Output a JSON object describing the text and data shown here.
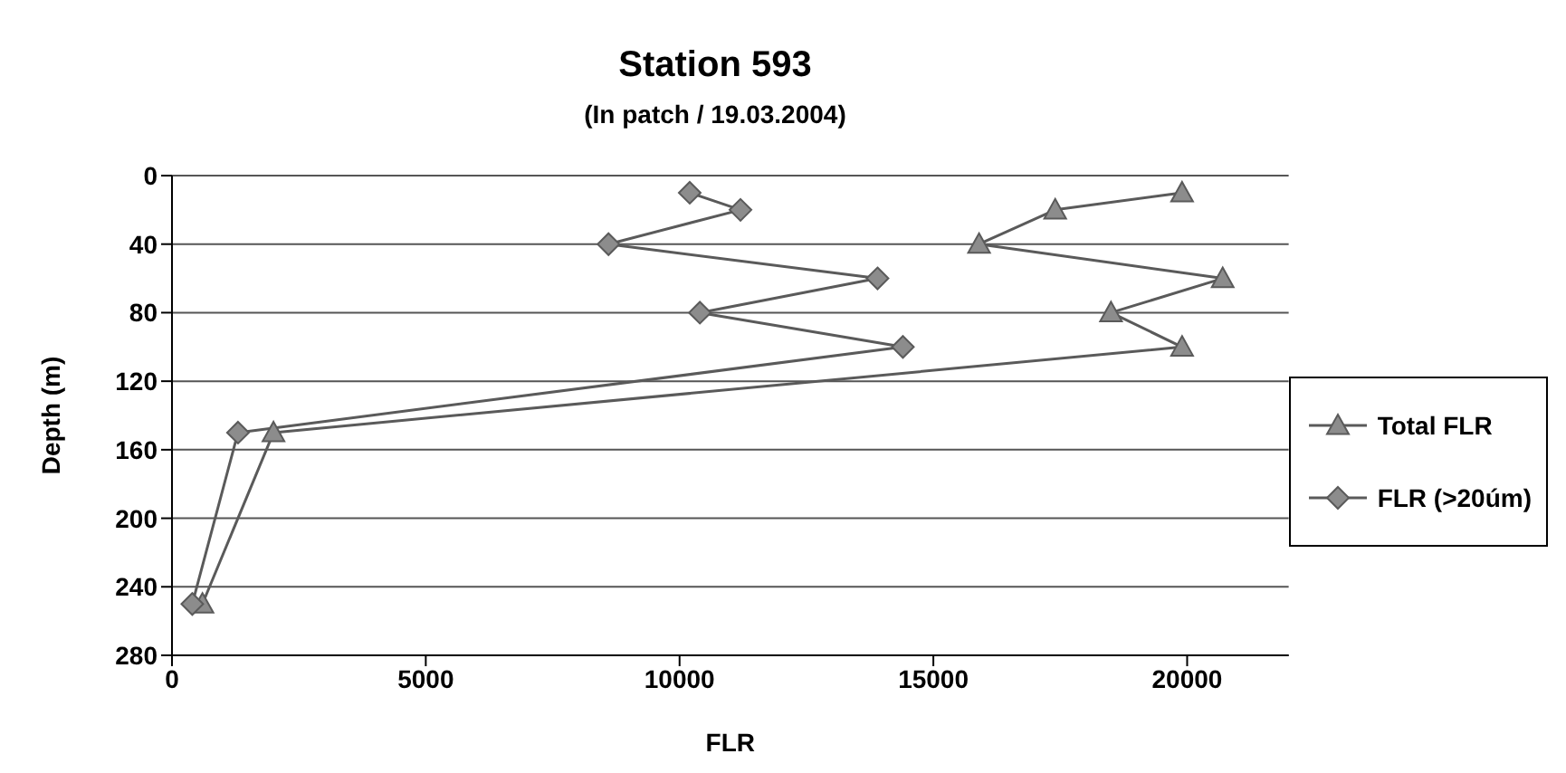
{
  "chart_data": {
    "type": "line",
    "title": "Station 593",
    "subtitle": "(In patch / 19.03.2004)",
    "xlabel": "FLR",
    "ylabel": "Depth (m)",
    "xlim": [
      0,
      22000
    ],
    "xticks": [
      0,
      5000,
      10000,
      15000,
      20000
    ],
    "ylim": [
      280,
      0
    ],
    "yticks": [
      0,
      40,
      80,
      120,
      160,
      200,
      240,
      280
    ],
    "grid": "y",
    "legend": "right",
    "series": [
      {
        "name": "Total FLR",
        "color": "#5a5a5a",
        "marker": "triangle",
        "x": [
          19900,
          17400,
          15900,
          20700,
          18500,
          19900,
          2000,
          600
        ],
        "values": [
          10,
          20,
          40,
          60,
          80,
          100,
          150,
          250
        ]
      },
      {
        "name": "FLR (>20úm)",
        "color": "#5a5a5a",
        "marker": "diamond",
        "x": [
          10200,
          11200,
          8600,
          13900,
          10400,
          14400,
          1300,
          400
        ],
        "values": [
          10,
          20,
          40,
          60,
          80,
          100,
          150,
          250
        ]
      }
    ]
  }
}
